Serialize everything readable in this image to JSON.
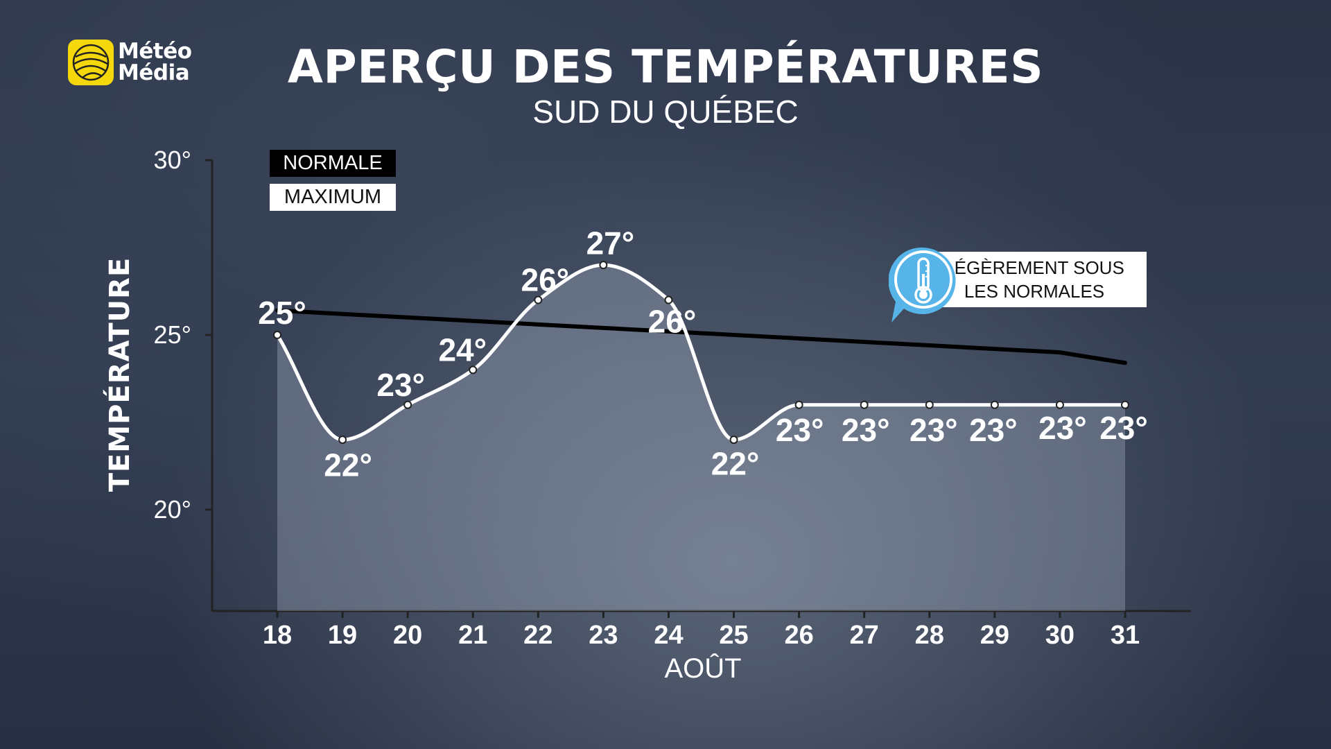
{
  "brand": {
    "name_line1": "Météo",
    "name_line2": "Média",
    "accent": "#f5d80c"
  },
  "header": {
    "title": "APERÇU DES TEMPÉRATURES",
    "subtitle": "SUD DU QUÉBEC"
  },
  "legend": {
    "normale": "NORMALE",
    "maximum": "MAXIMUM"
  },
  "callout": {
    "line1": "LÉGÈREMENT SOUS",
    "line2": "LES NORMALES",
    "icon": "thermometer-icon",
    "color": "#56b4e9"
  },
  "chart_data": {
    "type": "line",
    "title": "APERÇU DES TEMPÉRATURES",
    "subtitle": "SUD DU QUÉBEC",
    "xlabel": "AOÛT",
    "ylabel": "TEMPÉRATURE",
    "categories": [
      "18",
      "19",
      "20",
      "21",
      "22",
      "23",
      "24",
      "25",
      "26",
      "27",
      "28",
      "29",
      "30",
      "31"
    ],
    "yticks": [
      "30°",
      "25°",
      "20°"
    ],
    "ytick_values": [
      30,
      25,
      20
    ],
    "ylim": [
      17.1,
      30
    ],
    "series": [
      {
        "name": "MAXIMUM",
        "values": [
          25,
          22,
          23,
          24,
          26,
          27,
          26,
          22,
          23,
          23,
          23,
          23,
          23,
          23
        ],
        "labels": [
          "25°",
          "22°",
          "23°",
          "24°",
          "26°",
          "27°",
          "26°",
          "22°",
          "23°",
          "23°",
          "23°",
          "23°",
          "23°",
          "23°"
        ],
        "color": "#ffffff",
        "style": "smooth-area"
      },
      {
        "name": "NORMALE",
        "values": [
          25.7,
          25.6,
          25.5,
          25.4,
          25.3,
          25.2,
          25.1,
          25.0,
          24.9,
          24.8,
          24.7,
          24.6,
          24.5,
          24.2
        ],
        "color": "#000000",
        "style": "line"
      }
    ],
    "grid": false,
    "legend_position": "top-left"
  }
}
